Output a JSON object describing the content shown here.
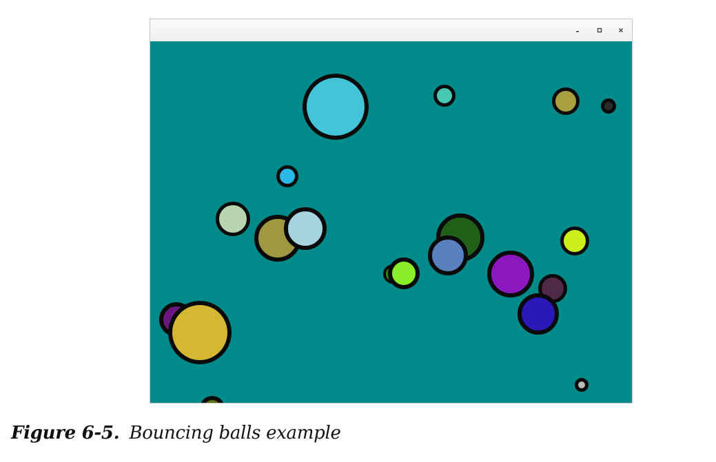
{
  "window": {
    "background_color": "#008a8a",
    "controls": [
      {
        "name": "minimize-icon",
        "symbol": "▬"
      },
      {
        "name": "maximize-icon",
        "symbol": "▣"
      },
      {
        "name": "close-icon",
        "symbol": "✕"
      }
    ]
  },
  "balls": [
    {
      "color": "#44c4d8"
    },
    {
      "color": "#48c8b0"
    },
    {
      "color": "#a8a040"
    },
    {
      "color": "#2a2a2a"
    },
    {
      "color": "#2ab8e8"
    },
    {
      "color": "#b8d4b0"
    },
    {
      "color": "#a09840"
    },
    {
      "color": "#a8d4e0"
    },
    {
      "color": "#206018"
    },
    {
      "color": "#5a80c0"
    },
    {
      "color": "#2a8a10"
    },
    {
      "color": "#88ee28"
    },
    {
      "color": "#cef01a"
    },
    {
      "color": "#8c18c0"
    },
    {
      "color": "#502848"
    },
    {
      "color": "#2a18b8"
    },
    {
      "color": "#6a1880"
    },
    {
      "color": "#d4b834"
    },
    {
      "color": "#bbbbbb"
    },
    {
      "color": "#607010"
    }
  ],
  "caption": {
    "label": "Figure 6-5.",
    "text": "Bouncing balls example"
  }
}
